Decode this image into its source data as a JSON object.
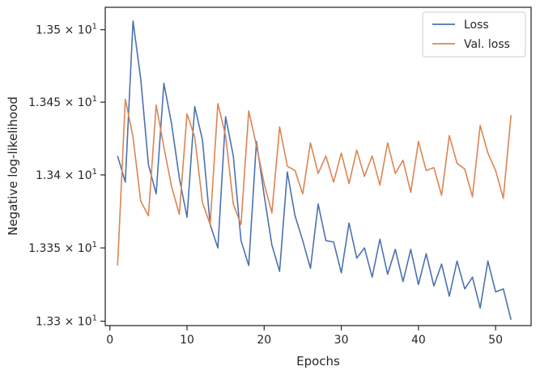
{
  "chart_data": {
    "type": "line",
    "xlabel": "Epochs",
    "ylabel": "Negative log-likelihood",
    "xlim": [
      -0.6,
      54.6
    ],
    "ylim": [
      13.297,
      13.5155
    ],
    "xticks": [
      0,
      10,
      20,
      30,
      40,
      50
    ],
    "xtick_labels": [
      "0",
      "10",
      "20",
      "30",
      "40",
      "50"
    ],
    "yticks": [
      13.3,
      13.35,
      13.4,
      13.45,
      13.5
    ],
    "ytick_labels": [
      {
        "base": "1.33 × 10",
        "exp": "1"
      },
      {
        "base": "1.335 × 10",
        "exp": "1"
      },
      {
        "base": "1.34 × 10",
        "exp": "1"
      },
      {
        "base": "1.345 × 10",
        "exp": "1"
      },
      {
        "base": "1.35 × 10",
        "exp": "1"
      }
    ],
    "y_scale": "log",
    "grid": false,
    "legend_position": "top-right",
    "x": [
      1,
      2,
      3,
      4,
      5,
      6,
      7,
      8,
      9,
      10,
      11,
      12,
      13,
      14,
      15,
      16,
      17,
      18,
      19,
      20,
      21,
      22,
      23,
      24,
      25,
      26,
      27,
      28,
      29,
      30,
      31,
      32,
      33,
      34,
      35,
      36,
      37,
      38,
      39,
      40,
      41,
      42,
      43,
      44,
      45,
      46,
      47,
      48,
      49,
      50,
      51,
      52
    ],
    "series": [
      {
        "name": "Loss",
        "color": "#4c72b0",
        "values": [
          13.413,
          13.395,
          13.506,
          13.466,
          13.407,
          13.387,
          13.463,
          13.435,
          13.398,
          13.371,
          13.447,
          13.424,
          13.366,
          13.35,
          13.44,
          13.413,
          13.355,
          13.338,
          13.423,
          13.386,
          13.352,
          13.334,
          13.402,
          13.372,
          13.355,
          13.336,
          13.38,
          13.355,
          13.354,
          13.333,
          13.367,
          13.343,
          13.35,
          13.33,
          13.356,
          13.332,
          13.349,
          13.327,
          13.349,
          13.325,
          13.346,
          13.324,
          13.339,
          13.317,
          13.341,
          13.322,
          13.33,
          13.309,
          13.341,
          13.32,
          13.322,
          13.301
        ]
      },
      {
        "name": "Val. loss",
        "color": "#dd8452",
        "values": [
          13.338,
          13.452,
          13.426,
          13.382,
          13.372,
          13.448,
          13.419,
          13.392,
          13.373,
          13.442,
          13.426,
          13.381,
          13.366,
          13.449,
          13.427,
          13.38,
          13.366,
          13.444,
          13.42,
          13.394,
          13.374,
          13.433,
          13.406,
          13.403,
          13.387,
          13.422,
          13.401,
          13.413,
          13.395,
          13.415,
          13.394,
          13.417,
          13.399,
          13.413,
          13.393,
          13.422,
          13.401,
          13.41,
          13.388,
          13.423,
          13.403,
          13.405,
          13.386,
          13.427,
          13.408,
          13.404,
          13.385,
          13.434,
          13.415,
          13.403,
          13.384,
          13.441
        ]
      }
    ]
  }
}
